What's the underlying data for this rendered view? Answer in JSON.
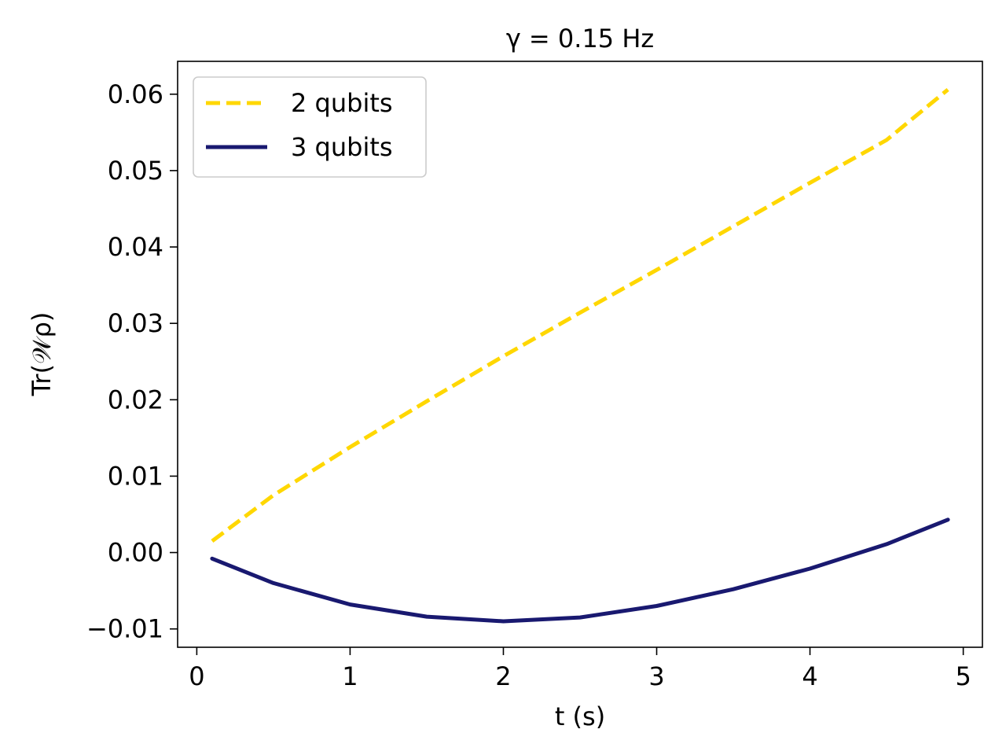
{
  "chart_data": {
    "type": "line",
    "title": "γ = 0.15  Hz",
    "xlabel": "t (s)",
    "ylabel": "Tr(𝒲ρ)",
    "xlim": [
      -0.125,
      5.125
    ],
    "ylim": [
      -0.0124,
      0.0643
    ],
    "x_ticks": [
      0,
      1,
      2,
      3,
      4,
      5
    ],
    "x_tick_labels": [
      "0",
      "1",
      "2",
      "3",
      "4",
      "5"
    ],
    "y_ticks": [
      -0.01,
      0.0,
      0.01,
      0.02,
      0.03,
      0.04,
      0.05,
      0.06
    ],
    "y_tick_labels": [
      "−0.01",
      "0.00",
      "0.01",
      "0.02",
      "0.03",
      "0.04",
      "0.05",
      "0.06"
    ],
    "grid": false,
    "legend_position": "top-left",
    "series": [
      {
        "name": "2 qubits",
        "color": "#FFD700",
        "style": "dashed",
        "x": [
          0.1,
          0.5,
          1.0,
          1.5,
          2.0,
          2.5,
          3.0,
          3.5,
          4.0,
          4.5,
          4.9
        ],
        "y": [
          0.0015,
          0.0075,
          0.0138,
          0.0198,
          0.0257,
          0.0314,
          0.037,
          0.0427,
          0.0484,
          0.054,
          0.0606
        ]
      },
      {
        "name": "3 qubits",
        "color": "#191970",
        "style": "solid",
        "x": [
          0.1,
          0.5,
          1.0,
          1.5,
          2.0,
          2.5,
          3.0,
          3.5,
          4.0,
          4.5,
          4.9
        ],
        "y": [
          -0.0008,
          -0.004,
          -0.0068,
          -0.0084,
          -0.009,
          -0.0085,
          -0.007,
          -0.0048,
          -0.0021,
          0.0011,
          0.0043
        ]
      }
    ]
  }
}
